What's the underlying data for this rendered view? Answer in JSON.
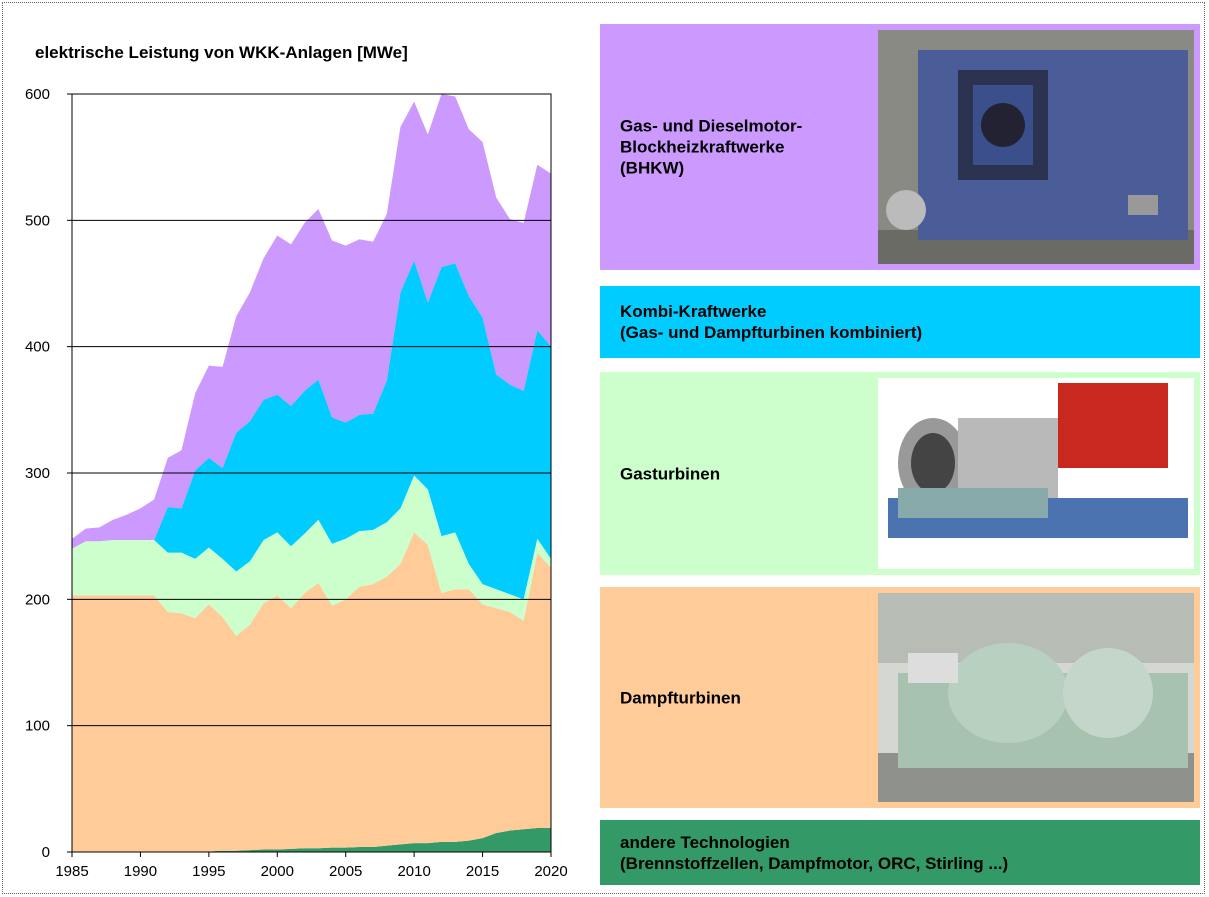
{
  "chart_data": {
    "type": "stacked-area",
    "title": "elektrische Leistung von WKK-Anlagen  [MWe]",
    "x": [
      1985,
      1986,
      1987,
      1988,
      1989,
      1990,
      1991,
      1992,
      1993,
      1994,
      1995,
      1996,
      1997,
      1998,
      1999,
      2000,
      2001,
      2002,
      2003,
      2004,
      2005,
      2006,
      2007,
      2008,
      2009,
      2010,
      2011,
      2012,
      2013,
      2014,
      2015,
      2016,
      2017,
      2018,
      2019,
      2020
    ],
    "xlim": [
      1985,
      2020
    ],
    "xticks": [
      1985,
      1990,
      1995,
      2000,
      2005,
      2010,
      2015,
      2020
    ],
    "ylim": [
      0,
      600
    ],
    "yticks": [
      0,
      100,
      200,
      300,
      400,
      500,
      600
    ],
    "grid": true,
    "series": [
      {
        "name": "andere Technologien\n(Brennstoffzellen, Dampfmotor, ORC, Stirling ...)",
        "color": "#339966",
        "values": [
          0,
          0,
          0,
          0,
          0,
          0,
          0,
          0,
          0,
          0,
          0.5,
          1,
          1,
          1.5,
          2,
          2,
          2.5,
          3,
          3,
          3.5,
          3.5,
          4,
          4,
          5,
          6,
          7,
          7,
          8,
          8,
          9,
          11,
          15,
          17,
          18,
          19,
          19
        ]
      },
      {
        "name": "Dampfturbinen",
        "color": "#ffcc99",
        "values": [
          203,
          203,
          203,
          203,
          203,
          203,
          203,
          190,
          189,
          185,
          195.5,
          185,
          170,
          178.5,
          195,
          201,
          190.5,
          202,
          210,
          191.5,
          196.5,
          206,
          208,
          213,
          222,
          246,
          236,
          197,
          200,
          199,
          185,
          178,
          173,
          165,
          218,
          206
        ]
      },
      {
        "name": "Gasturbinen",
        "color": "#ccffcc",
        "values": [
          37,
          43,
          43,
          44,
          44,
          44,
          44,
          47,
          48,
          47,
          45,
          46,
          51,
          50,
          50,
          50,
          49,
          47,
          50,
          49,
          48,
          44,
          43,
          43,
          44,
          45,
          44,
          45,
          45,
          20,
          16,
          15,
          14,
          17,
          11,
          7
        ]
      },
      {
        "name": "Kombi-Kraftwerke\n(Gas- und Dampfturbinen kombiniert)",
        "color": "#00ccff",
        "values": [
          0,
          0,
          0,
          0,
          0,
          0,
          0,
          36,
          35,
          70,
          71,
          72,
          110,
          111,
          111,
          109,
          111,
          113,
          111,
          100,
          92,
          92,
          92,
          112,
          171,
          170,
          148,
          213,
          213,
          212,
          211,
          170,
          166,
          165,
          165,
          168
        ]
      },
      {
        "name": "Gas- und Dieselmotor-\nBlockheizkraftwerke\n(BHKW)",
        "color": "#cc99ff",
        "values": [
          8,
          10,
          11,
          16,
          20,
          25,
          32,
          39,
          46,
          61,
          73,
          80,
          92,
          102,
          112,
          126,
          128,
          133,
          135,
          140,
          140,
          139,
          136,
          132,
          131,
          126,
          133,
          137,
          132,
          132,
          139,
          140,
          131,
          133,
          131,
          137
        ]
      }
    ]
  }
}
